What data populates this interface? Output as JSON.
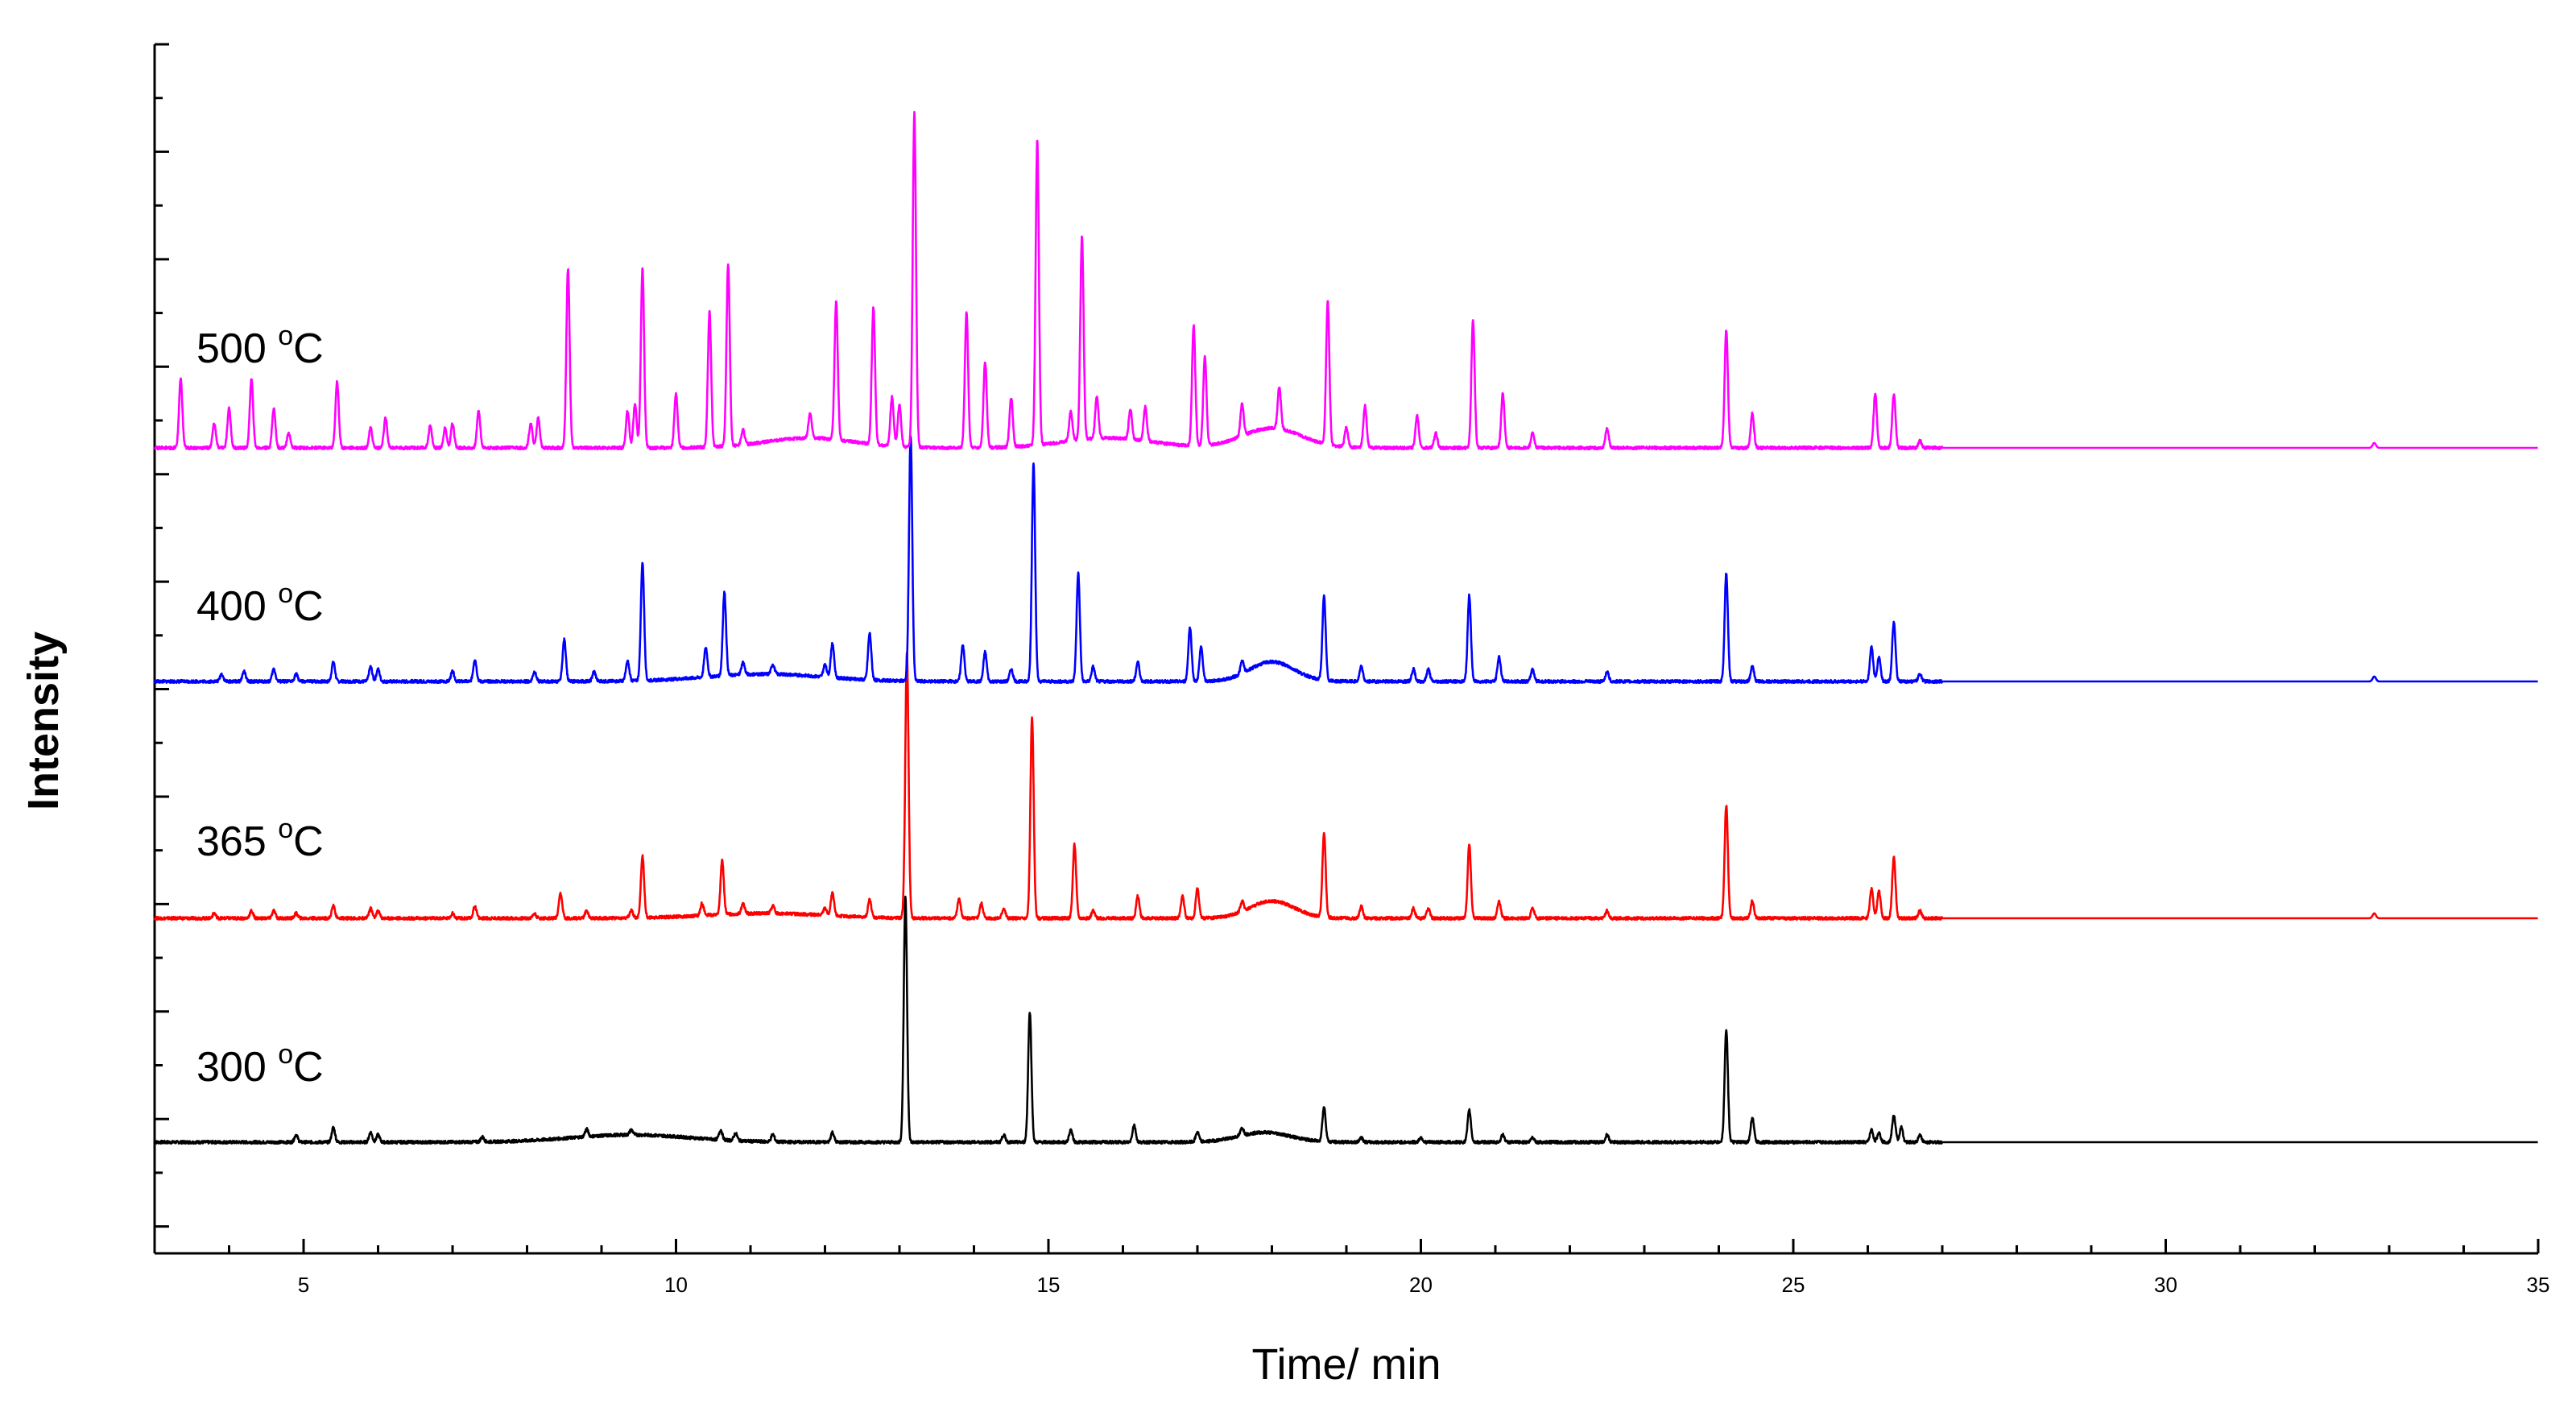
{
  "chart_data": {
    "type": "line",
    "xlabel": "Time/ min",
    "ylabel": "Intensity",
    "xlim": [
      3,
      35
    ],
    "x_ticks": [
      5,
      10,
      15,
      20,
      25,
      30,
      35
    ],
    "y_ticks_shown": false,
    "grid": false,
    "legend": "none (inline labels at left of each trace)",
    "layout": "stacked offset traces, bottom to top",
    "series": [
      {
        "name": "300 °C",
        "label_main": "300 ",
        "label_sup": "o",
        "label_unit": "C",
        "color": "#000000",
        "offset": 0,
        "baseline": 0,
        "peaks": [
          [
            4.9,
            3
          ],
          [
            5.4,
            6
          ],
          [
            5.9,
            4
          ],
          [
            6.0,
            3
          ],
          [
            7.4,
            2
          ],
          [
            8.8,
            3
          ],
          [
            9.4,
            2
          ],
          [
            10.6,
            4
          ],
          [
            10.8,
            3
          ],
          [
            11.3,
            3
          ],
          [
            12.1,
            4
          ],
          [
            13.08,
            100
          ],
          [
            14.4,
            3
          ],
          [
            14.75,
            53
          ],
          [
            15.3,
            5
          ],
          [
            16.15,
            7
          ],
          [
            17.0,
            4
          ],
          [
            17.6,
            3
          ],
          [
            18.7,
            14
          ],
          [
            19.2,
            2
          ],
          [
            20.0,
            2
          ],
          [
            20.65,
            13
          ],
          [
            21.1,
            3
          ],
          [
            21.5,
            2
          ],
          [
            22.5,
            3
          ],
          [
            24.1,
            46
          ],
          [
            24.45,
            10
          ],
          [
            26.05,
            5
          ],
          [
            26.15,
            4
          ],
          [
            26.35,
            11
          ],
          [
            26.45,
            6
          ],
          [
            26.7,
            3
          ]
        ],
        "humps": [
          [
            9.4,
            0.8,
            3
          ],
          [
            17.9,
            0.35,
            4
          ]
        ]
      },
      {
        "name": "365 °C",
        "label_main": "365 ",
        "label_sup": "o",
        "label_unit": "C",
        "color": "#ff0000",
        "offset": 1,
        "baseline": 0,
        "peaks": [
          [
            3.8,
            2
          ],
          [
            4.3,
            3
          ],
          [
            4.6,
            3
          ],
          [
            4.9,
            2
          ],
          [
            5.4,
            5
          ],
          [
            5.9,
            4
          ],
          [
            6.0,
            3
          ],
          [
            7.0,
            2
          ],
          [
            7.3,
            5
          ],
          [
            8.1,
            2
          ],
          [
            8.45,
            10
          ],
          [
            8.8,
            3
          ],
          [
            9.4,
            3
          ],
          [
            9.55,
            25
          ],
          [
            10.35,
            5
          ],
          [
            10.62,
            22
          ],
          [
            10.9,
            4
          ],
          [
            11.3,
            3
          ],
          [
            12.0,
            3
          ],
          [
            12.1,
            9
          ],
          [
            12.6,
            7
          ],
          [
            13.1,
            108
          ],
          [
            13.8,
            8
          ],
          [
            14.1,
            6
          ],
          [
            14.4,
            4
          ],
          [
            14.78,
            82
          ],
          [
            15.35,
            30
          ],
          [
            15.6,
            3
          ],
          [
            16.2,
            9
          ],
          [
            16.8,
            9
          ],
          [
            17.0,
            12
          ],
          [
            17.6,
            4
          ],
          [
            18.7,
            34
          ],
          [
            19.2,
            5
          ],
          [
            19.9,
            4
          ],
          [
            20.1,
            4
          ],
          [
            20.65,
            30
          ],
          [
            21.05,
            7
          ],
          [
            21.5,
            4
          ],
          [
            22.5,
            3
          ],
          [
            24.1,
            46
          ],
          [
            24.45,
            7
          ],
          [
            26.05,
            12
          ],
          [
            26.15,
            11
          ],
          [
            26.35,
            25
          ],
          [
            26.7,
            3
          ],
          [
            32.8,
            2
          ]
        ],
        "humps": [
          [
            18.0,
            0.3,
            7
          ],
          [
            11.2,
            0.8,
            2
          ]
        ]
      },
      {
        "name": "400 °C",
        "label_main": "400 ",
        "label_sup": "o",
        "label_unit": "C",
        "color": "#0000ff",
        "offset": 2,
        "baseline": 0,
        "peaks": [
          [
            3.9,
            3
          ],
          [
            4.2,
            4
          ],
          [
            4.6,
            5
          ],
          [
            4.9,
            3
          ],
          [
            5.4,
            8
          ],
          [
            5.9,
            6
          ],
          [
            6.0,
            5
          ],
          [
            7.0,
            4
          ],
          [
            7.3,
            9
          ],
          [
            8.1,
            4
          ],
          [
            8.5,
            17
          ],
          [
            8.9,
            4
          ],
          [
            9.35,
            8
          ],
          [
            9.55,
            48
          ],
          [
            10.4,
            12
          ],
          [
            10.65,
            34
          ],
          [
            10.9,
            5
          ],
          [
            11.3,
            4
          ],
          [
            12.0,
            5
          ],
          [
            12.1,
            14
          ],
          [
            12.6,
            19
          ],
          [
            13.15,
            100
          ],
          [
            13.85,
            15
          ],
          [
            14.15,
            12
          ],
          [
            14.5,
            5
          ],
          [
            14.8,
            89
          ],
          [
            15.4,
            44
          ],
          [
            15.6,
            6
          ],
          [
            16.2,
            8
          ],
          [
            16.9,
            22
          ],
          [
            17.05,
            14
          ],
          [
            17.6,
            5
          ],
          [
            18.7,
            34
          ],
          [
            19.2,
            6
          ],
          [
            19.9,
            5
          ],
          [
            20.1,
            5
          ],
          [
            20.65,
            35
          ],
          [
            21.05,
            10
          ],
          [
            21.5,
            5
          ],
          [
            22.5,
            4
          ],
          [
            24.1,
            44
          ],
          [
            24.45,
            6
          ],
          [
            26.05,
            14
          ],
          [
            26.15,
            10
          ],
          [
            26.35,
            24
          ],
          [
            26.7,
            3
          ],
          [
            32.8,
            2
          ]
        ],
        "humps": [
          [
            18.0,
            0.3,
            8
          ],
          [
            11.2,
            0.8,
            3
          ]
        ]
      },
      {
        "name": "500 °C",
        "label_main": "500 ",
        "label_sup": "o",
        "label_unit": "C",
        "color": "#ff00ff",
        "offset": 3,
        "baseline": 0,
        "peaks": [
          [
            3.35,
            28
          ],
          [
            3.8,
            10
          ],
          [
            4.0,
            16
          ],
          [
            4.3,
            28
          ],
          [
            4.6,
            16
          ],
          [
            4.8,
            6
          ],
          [
            5.45,
            27
          ],
          [
            5.9,
            8
          ],
          [
            6.1,
            12
          ],
          [
            6.7,
            9
          ],
          [
            6.9,
            8
          ],
          [
            7.0,
            10
          ],
          [
            7.35,
            15
          ],
          [
            8.05,
            10
          ],
          [
            8.15,
            12
          ],
          [
            8.55,
            73
          ],
          [
            9.35,
            15
          ],
          [
            9.45,
            18
          ],
          [
            9.55,
            73
          ],
          [
            10.0,
            22
          ],
          [
            10.45,
            55
          ],
          [
            10.7,
            74
          ],
          [
            10.9,
            6
          ],
          [
            11.8,
            10
          ],
          [
            12.15,
            56
          ],
          [
            12.65,
            56
          ],
          [
            12.9,
            20
          ],
          [
            13.0,
            17
          ],
          [
            13.2,
            136
          ],
          [
            13.9,
            55
          ],
          [
            14.15,
            35
          ],
          [
            14.5,
            20
          ],
          [
            14.85,
            124
          ],
          [
            15.3,
            12
          ],
          [
            15.45,
            83
          ],
          [
            15.65,
            17
          ],
          [
            16.1,
            12
          ],
          [
            16.3,
            14
          ],
          [
            16.95,
            49
          ],
          [
            17.1,
            36
          ],
          [
            17.6,
            13
          ],
          [
            18.1,
            17
          ],
          [
            18.75,
            58
          ],
          [
            19.0,
            8
          ],
          [
            19.25,
            17
          ],
          [
            19.95,
            13
          ],
          [
            20.2,
            6
          ],
          [
            20.7,
            52
          ],
          [
            21.1,
            22
          ],
          [
            21.5,
            6
          ],
          [
            22.5,
            8
          ],
          [
            24.1,
            48
          ],
          [
            24.45,
            14
          ],
          [
            26.1,
            22
          ],
          [
            26.35,
            22
          ],
          [
            26.7,
            3
          ],
          [
            32.8,
            2
          ]
        ],
        "humps": [
          [
            18.0,
            0.4,
            8
          ],
          [
            11.8,
            0.6,
            4
          ],
          [
            15.8,
            0.6,
            4
          ]
        ]
      }
    ]
  }
}
